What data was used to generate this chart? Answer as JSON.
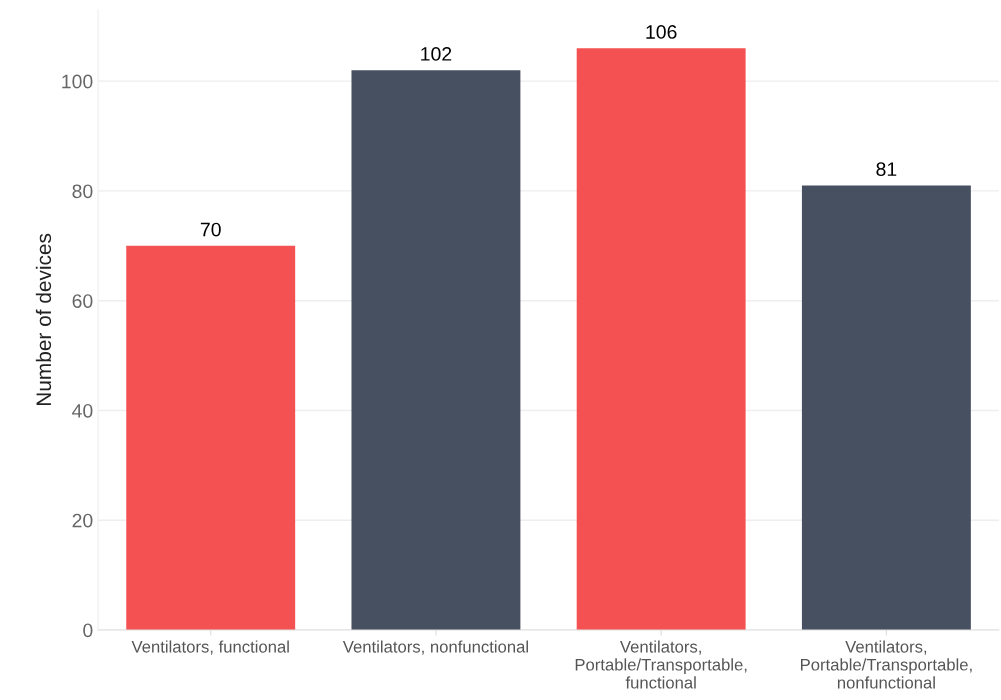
{
  "chart_data": {
    "type": "bar",
    "ylabel": "Number of devices",
    "categories": [
      "Ventilators, functional",
      "Ventilators, nonfunctional",
      "Ventilators, Portable/Transportable, functional",
      "Ventilators, Portable/Transportable, nonfunctional"
    ],
    "values": [
      70,
      102,
      106,
      81
    ],
    "colors": [
      "#f45252",
      "#475061",
      "#f45252",
      "#475061"
    ],
    "ylim": [
      0,
      113
    ],
    "yticks": [
      0,
      20,
      40,
      60,
      80,
      100
    ],
    "grid": "y",
    "data_labels": true
  }
}
